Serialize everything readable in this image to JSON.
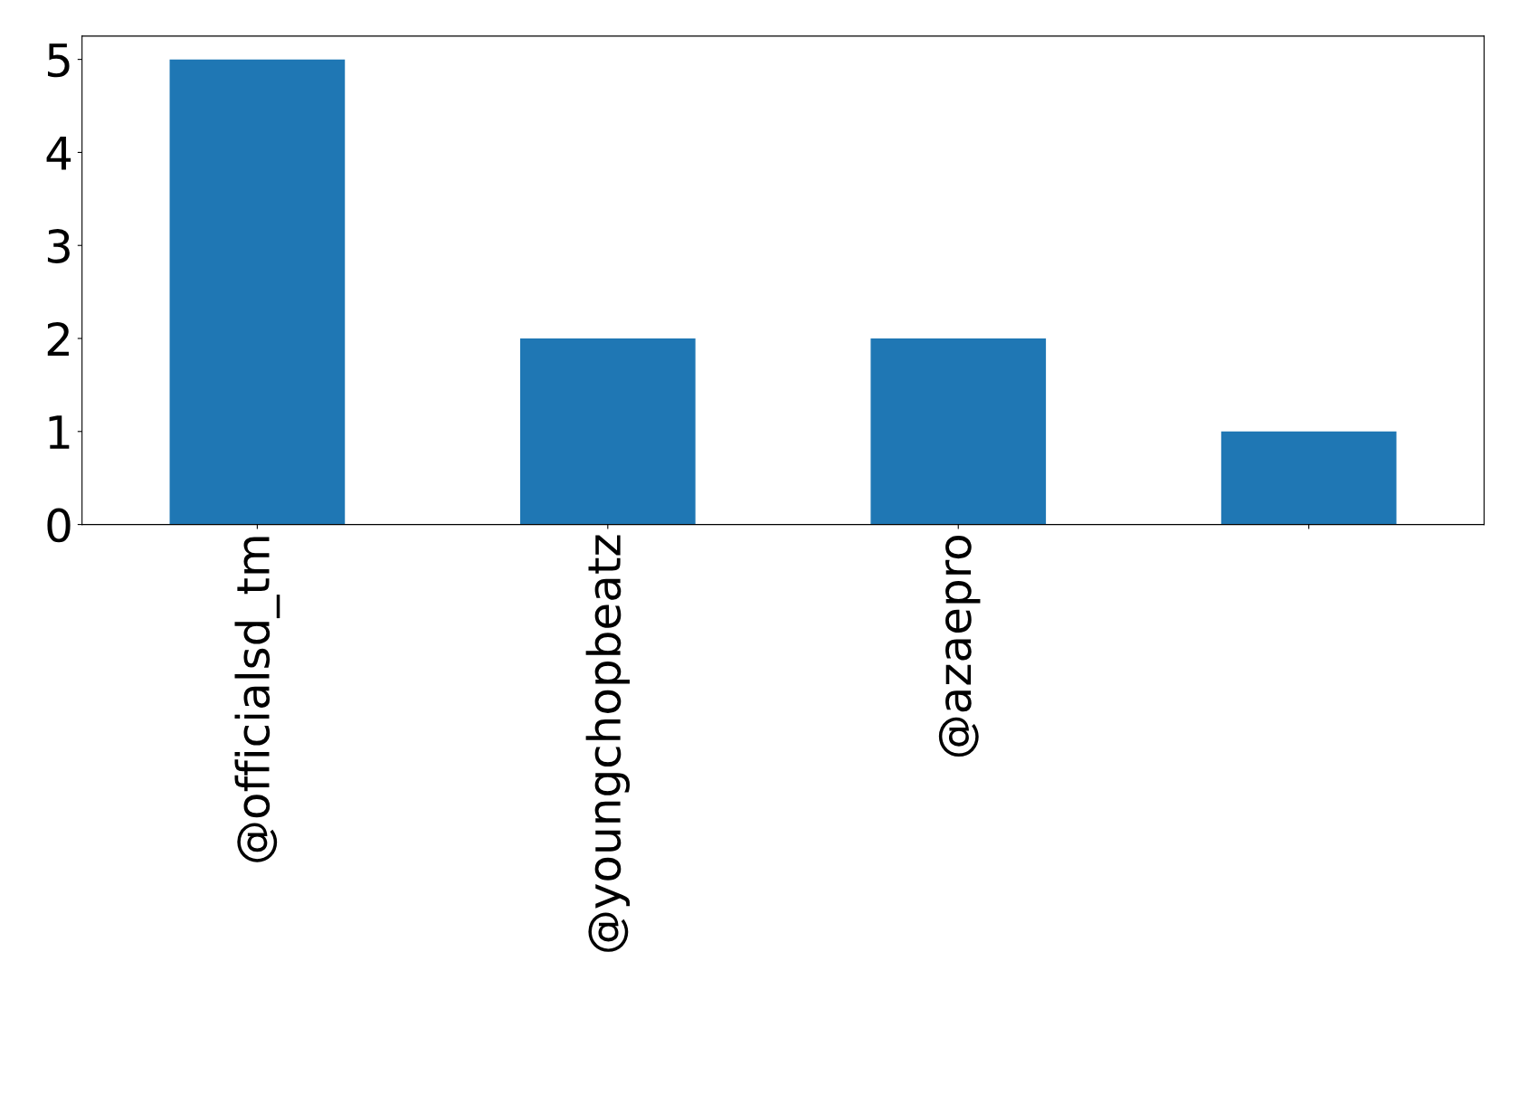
{
  "chart_data": {
    "type": "bar",
    "categories": [
      "@officialsd_tm",
      "@youngchopbeatz",
      "@azaepro",
      null
    ],
    "values": [
      5,
      2,
      2,
      1
    ],
    "color": "#1f77b4",
    "ylim": [
      0,
      5.25
    ],
    "yticks": [
      0,
      1,
      2,
      3,
      4,
      5
    ],
    "grid": false,
    "legend": false
  }
}
